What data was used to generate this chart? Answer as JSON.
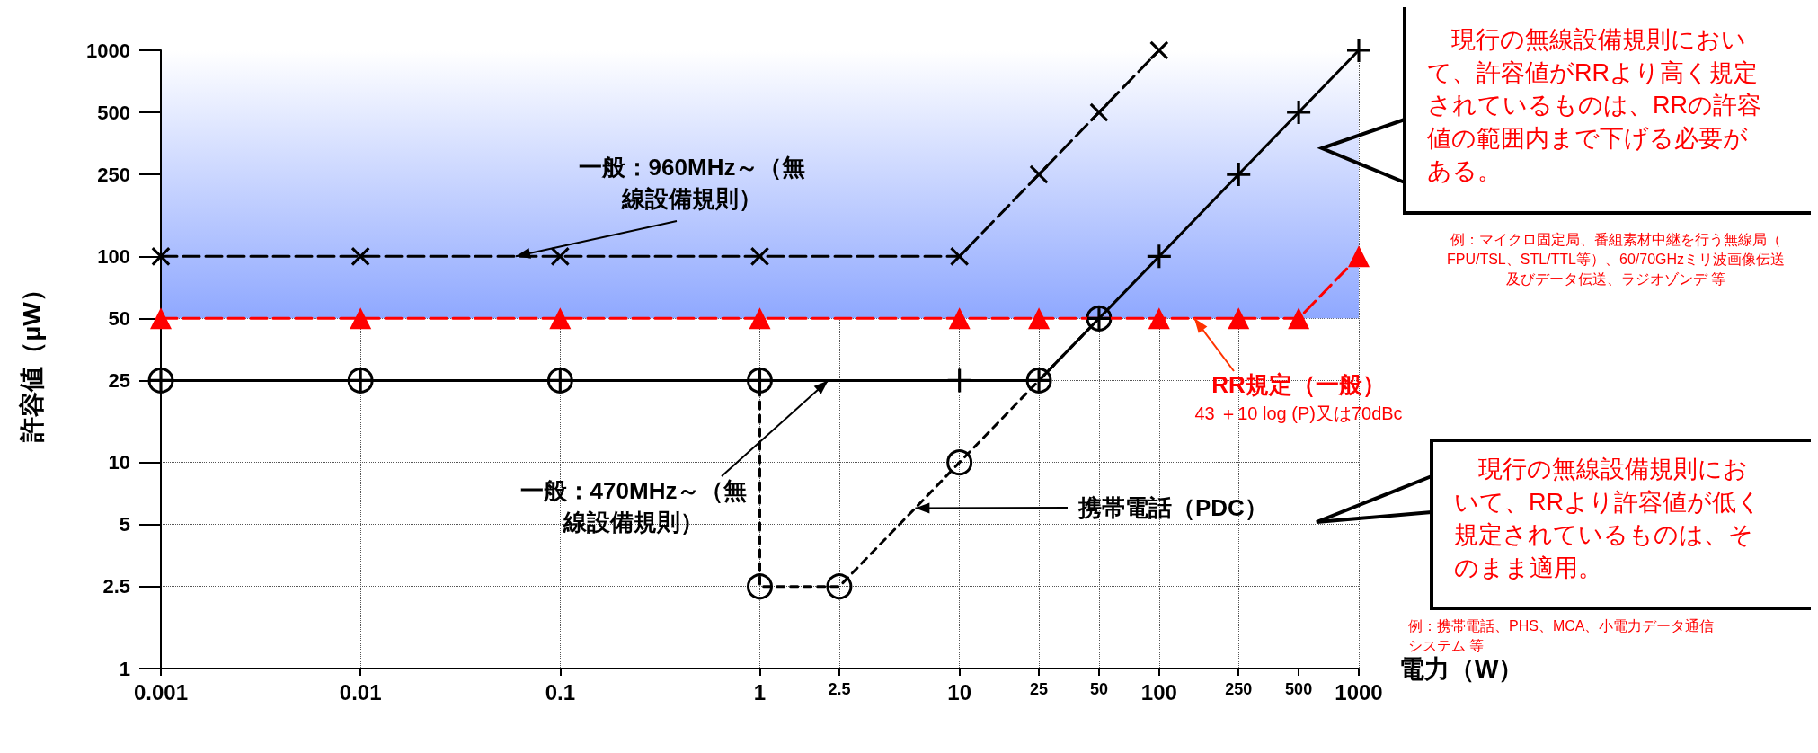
{
  "chart_data": {
    "type": "line",
    "xlabel": "電力（W）",
    "ylabel": "許容値（μW）",
    "log": "xy",
    "grid": true,
    "xlim": [
      0.001,
      1000
    ],
    "xticks": [
      0.001,
      0.01,
      0.1,
      1,
      2.5,
      10,
      25,
      50,
      100,
      250,
      500,
      1000
    ],
    "ylim": [
      1,
      1000
    ],
    "yticks": [
      1,
      2.5,
      5,
      10,
      25,
      50,
      100,
      250,
      500,
      1000
    ],
    "bands": [
      {
        "axis": "y",
        "from": 50,
        "to": 1000,
        "color": "#8fa8ff"
      }
    ],
    "series": [
      {
        "color": "#000000",
        "marker": "cross",
        "line_style": "dashed",
        "x": [
          0.001,
          0.01,
          0.1,
          1,
          10,
          25,
          50,
          100
        ],
        "values": [
          100,
          100,
          100,
          100,
          100,
          250,
          500,
          1000
        ]
      },
      {
        "color": "#ff0000",
        "marker": "triangle",
        "line_style": "dashed",
        "x": [
          0.001,
          0.01,
          0.1,
          1,
          10,
          25,
          100,
          250,
          500,
          1000
        ],
        "values": [
          50,
          50,
          50,
          50,
          50,
          50,
          50,
          50,
          50,
          100
        ]
      },
      {
        "color": "#000000",
        "marker": "cross",
        "line_style": "solid",
        "x": [
          0.001,
          0.01,
          0.1,
          1,
          10,
          25,
          50,
          100,
          250,
          500,
          1000
        ],
        "values": [
          25,
          25,
          25,
          25,
          25,
          25,
          50,
          100,
          250,
          500,
          1000
        ]
      },
      {
        "color": "#000000",
        "marker": "circle",
        "line_style": "dotted",
        "x": [
          0.001,
          0.01,
          0.1,
          1,
          1,
          2.5,
          10,
          25,
          50
        ],
        "values": [
          25,
          25,
          25,
          25,
          2.5,
          2.5,
          10,
          25,
          50
        ]
      }
    ],
    "annotations": [
      {
        "text": "一般：960MHz～（無線設備規則）",
        "x": 0.06,
        "y": 100
      },
      {
        "text": "一般：470MHz～（無線設備規則）",
        "x": 2.2,
        "y": 25
      },
      {
        "text": "携帯電話（PDC）",
        "x": 6,
        "y": 6
      },
      {
        "text": "RR規定（一般）",
        "x": 150,
        "y": 50
      },
      "43 ＋10 log (P)又は70dBc",
      "　現行の無線設備規則において、許容値がRRより高く規定されているものは、RRの許容値の範囲内まで下げる必要がある。",
      "例：マイクロ固定局、番組素材中継を行う無線局（FPU/TSL、STL/TTL等）、60/70GHzミリ波画像伝送及びデータ伝送、ラジオゾンデ 等",
      "　現行の無線設備規則において、RRより許容値が低く規定されているものは、そのまま適用。",
      "例：携帯電話、PHS、MCA、小電力データ通信システム 等"
    ]
  }
}
